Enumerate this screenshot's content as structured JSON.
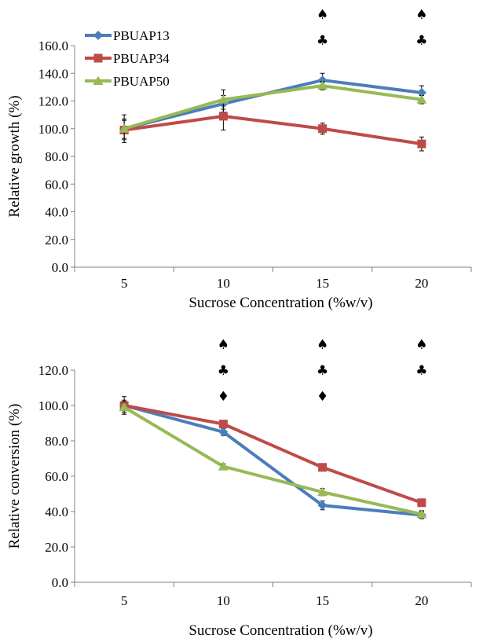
{
  "chart_data": [
    {
      "type": "line",
      "title": "",
      "xlabel": "Sucrose Concentration (%w/v)",
      "ylabel": "Relative growth (%)",
      "categories": [
        "5",
        "10",
        "15",
        "20"
      ],
      "ylim": [
        0,
        160
      ],
      "yticks": [
        "0.0",
        "20.0",
        "40.0",
        "60.0",
        "80.0",
        "100.0",
        "120.0",
        "140.0",
        "160.0"
      ],
      "grid": false,
      "legend_position": "top-left",
      "series": [
        {
          "name": "PBUAP13",
          "color": "#4a7ebb",
          "marker": "diamond",
          "values": [
            100,
            118,
            135,
            126
          ],
          "errors": [
            7,
            6,
            5,
            5
          ]
        },
        {
          "name": "PBUAP34",
          "color": "#be4b48",
          "marker": "square",
          "values": [
            99,
            109,
            100,
            89
          ],
          "errors": [
            7,
            10,
            4,
            5
          ]
        },
        {
          "name": "PBUAP50",
          "color": "#98b954",
          "marker": "triangle",
          "values": [
            100,
            121,
            131,
            121
          ],
          "errors": [
            10,
            7,
            3,
            3
          ]
        }
      ],
      "significance_marks": [
        {
          "category": "15",
          "marks": [
            "♠",
            "♣"
          ]
        },
        {
          "category": "20",
          "marks": [
            "♠",
            "♣"
          ]
        }
      ]
    },
    {
      "type": "line",
      "title": "",
      "xlabel": "Sucrose Concentration (%w/v)",
      "ylabel": "Relative conversion (%)",
      "categories": [
        "5",
        "10",
        "15",
        "20"
      ],
      "ylim": [
        0,
        120
      ],
      "yticks": [
        "0.0",
        "20.0",
        "40.0",
        "60.0",
        "80.0",
        "100.0",
        "120.0"
      ],
      "grid": false,
      "legend_position": "none",
      "series": [
        {
          "name": "PBUAP13",
          "color": "#4a7ebb",
          "marker": "diamond",
          "values": [
            100,
            85,
            43.5,
            38
          ],
          "errors": [
            5,
            2,
            2.5,
            2
          ]
        },
        {
          "name": "PBUAP34",
          "color": "#be4b48",
          "marker": "square",
          "values": [
            100,
            89.5,
            65,
            45
          ],
          "errors": [
            3,
            1,
            1,
            1.5
          ]
        },
        {
          "name": "PBUAP50",
          "color": "#98b954",
          "marker": "triangle",
          "values": [
            99,
            65.5,
            51,
            38.5
          ],
          "errors": [
            3,
            1.5,
            2,
            2
          ]
        }
      ],
      "significance_marks": [
        {
          "category": "10",
          "marks": [
            "♠",
            "♣",
            "♦"
          ]
        },
        {
          "category": "15",
          "marks": [
            "♠",
            "♣",
            "♦"
          ]
        },
        {
          "category": "20",
          "marks": [
            "♠",
            "♣"
          ]
        }
      ]
    }
  ]
}
